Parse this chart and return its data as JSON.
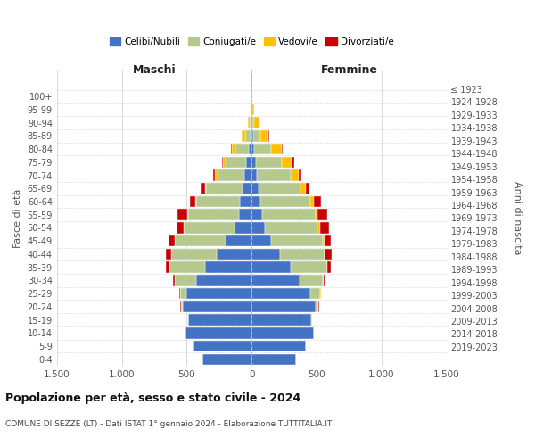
{
  "age_groups_display": [
    "100+",
    "95-99",
    "90-94",
    "85-89",
    "80-84",
    "75-79",
    "70-74",
    "65-69",
    "60-64",
    "55-59",
    "50-54",
    "45-49",
    "40-44",
    "35-39",
    "30-34",
    "25-29",
    "20-24",
    "15-19",
    "10-14",
    "5-9",
    "0-4"
  ],
  "birth_years_display": [
    "≤ 1923",
    "1924-1928",
    "1929-1933",
    "1934-1938",
    "1939-1943",
    "1944-1948",
    "1949-1953",
    "1954-1958",
    "1959-1963",
    "1964-1968",
    "1969-1973",
    "1974-1978",
    "1979-1983",
    "1984-1988",
    "1989-1993",
    "1994-1998",
    "1999-2003",
    "2004-2008",
    "2009-2013",
    "2014-2018",
    "2019-2023"
  ],
  "colors": {
    "celibi": "#4472c4",
    "coniugati": "#b5c98e",
    "vedovi": "#ffc000",
    "divorziati": "#cc0000"
  },
  "maschi": {
    "celibi": [
      380,
      450,
      510,
      490,
      530,
      500,
      430,
      360,
      270,
      200,
      130,
      100,
      90,
      70,
      55,
      40,
      25,
      10,
      5,
      3,
      2
    ],
    "coniugati": [
      0,
      0,
      0,
      2,
      10,
      50,
      160,
      270,
      350,
      390,
      390,
      390,
      340,
      280,
      210,
      160,
      100,
      40,
      10,
      2,
      0
    ],
    "vedovi": [
      0,
      0,
      0,
      0,
      2,
      2,
      2,
      2,
      2,
      3,
      5,
      5,
      5,
      10,
      15,
      20,
      30,
      25,
      15,
      5,
      2
    ],
    "divorziati": [
      0,
      0,
      0,
      0,
      8,
      3,
      15,
      30,
      40,
      45,
      55,
      75,
      40,
      30,
      15,
      10,
      5,
      2,
      0,
      0,
      0
    ]
  },
  "femmine": {
    "celibi": [
      340,
      420,
      480,
      460,
      490,
      450,
      370,
      300,
      220,
      150,
      100,
      80,
      70,
      55,
      40,
      30,
      20,
      10,
      5,
      3,
      2
    ],
    "coniugati": [
      0,
      0,
      0,
      5,
      20,
      80,
      180,
      280,
      340,
      400,
      410,
      410,
      380,
      320,
      260,
      200,
      130,
      55,
      15,
      2,
      0
    ],
    "vedovi": [
      0,
      0,
      0,
      0,
      2,
      2,
      2,
      3,
      5,
      10,
      15,
      20,
      30,
      40,
      60,
      80,
      80,
      65,
      40,
      15,
      5
    ],
    "divorziati": [
      0,
      0,
      0,
      0,
      10,
      5,
      15,
      30,
      55,
      50,
      70,
      70,
      55,
      30,
      20,
      15,
      8,
      5,
      0,
      0,
      0
    ]
  },
  "title": "Popolazione per età, sesso e stato civile - 2024",
  "subtitle": "COMUNE DI SEZZE (LT) - Dati ISTAT 1° gennaio 2024 - Elaborazione TUTTITALIA.IT",
  "xlabel_left": "Maschi",
  "xlabel_right": "Femmine",
  "ylabel_left": "Fasce di età",
  "ylabel_right": "Anni di nascita",
  "xlim": 1500,
  "xticks": [
    -1500,
    -1000,
    -500,
    0,
    500,
    1000,
    1500
  ],
  "xticklabels": [
    "1.500",
    "1.000",
    "500",
    "0",
    "500",
    "1.000",
    "1.500"
  ],
  "legend_labels": [
    "Celibi/Nubili",
    "Coniugati/e",
    "Vedovi/e",
    "Divorziati/e"
  ]
}
